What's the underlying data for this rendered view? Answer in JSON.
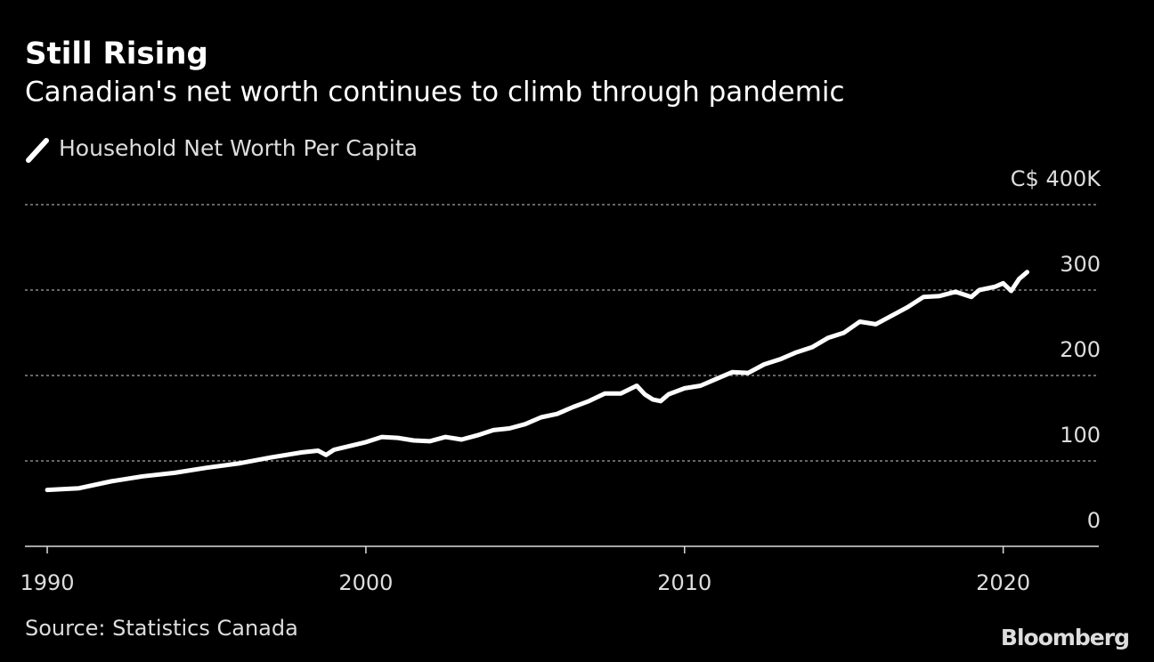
{
  "chart_data": {
    "type": "line",
    "title": "Still Rising",
    "subtitle": "Canadian's net worth continues to climb through pandemic",
    "source": "Source: Statistics Canada",
    "brand": "Bloomberg",
    "x": [
      1990,
      1991,
      1992,
      1993,
      1994,
      1995,
      1996,
      1997,
      1998,
      1998.5,
      1998.75,
      1999,
      2000,
      2000.5,
      2001,
      2001.5,
      2002,
      2002.5,
      2003,
      2003.5,
      2004,
      2004.5,
      2005,
      2005.5,
      2006,
      2006.5,
      2007,
      2007.5,
      2008,
      2008.5,
      2008.75,
      2009,
      2009.25,
      2009.5,
      2010,
      2010.5,
      2011,
      2011.5,
      2012,
      2012.5,
      2013,
      2013.5,
      2014,
      2014.5,
      2015,
      2015.5,
      2016,
      2016.5,
      2017,
      2017.5,
      2018,
      2018.5,
      2019,
      2019.25,
      2019.75,
      2020,
      2020.25,
      2020.5,
      2020.75
    ],
    "series": [
      {
        "name": "Household Net Worth Per Capita",
        "color": "#ffffff",
        "values": [
          66,
          68,
          76,
          82,
          86,
          92,
          97,
          104,
          110,
          112,
          107,
          113,
          122,
          128,
          127,
          124,
          123,
          128,
          125,
          130,
          136,
          138,
          143,
          151,
          155,
          163,
          170,
          179,
          179,
          188,
          178,
          172,
          170,
          178,
          185,
          188,
          196,
          204,
          203,
          213,
          219,
          227,
          233,
          244,
          250,
          263,
          260,
          270,
          280,
          292,
          293,
          298,
          292,
          300,
          304,
          308,
          299,
          313,
          321
        ]
      }
    ],
    "xlim": [
      1989.3,
      2023
    ],
    "xticks": [
      1990,
      2000,
      2010,
      2020
    ],
    "ylim": [
      0,
      400
    ],
    "yticks": [
      0,
      100,
      200,
      300,
      {
        "value": 400,
        "label": "C$ 400K"
      }
    ],
    "grid": true
  }
}
